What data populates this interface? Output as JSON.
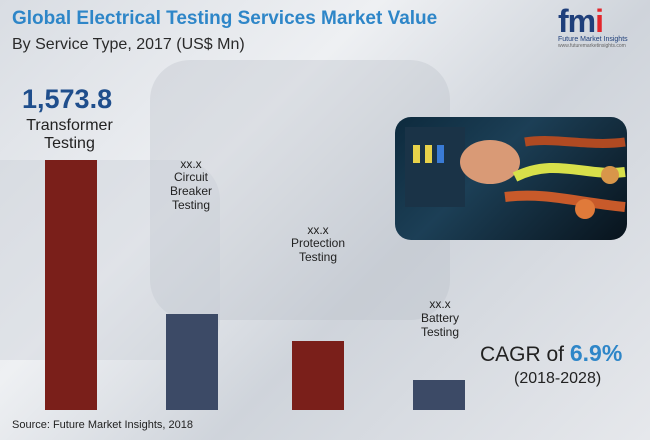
{
  "title": "Global Electrical Testing Services Market Value",
  "subtitle": "By Service Type, 2017 (US$ Mn)",
  "logo": {
    "mark_f": "f",
    "mark_m": "m",
    "mark_i": "i",
    "name": "Future Market Insights",
    "url": "www.futuremarketinsights.com"
  },
  "source": "Source: Future Market Insights, 2018",
  "cagr": {
    "prefix": "CAGR of",
    "value": "6.9%",
    "period": "(2018-2028)"
  },
  "colors": {
    "maroon": "#7a1f1a",
    "navy": "#3c4a66",
    "title_blue": "#2e86c8"
  },
  "chart_data": {
    "type": "bar",
    "title": "Global Electrical Testing Services Market Value",
    "subtitle": "By Service Type, 2017 (US$ Mn)",
    "categories": [
      "Transformer Testing",
      "Circuit Breaker Testing",
      "Protection Testing",
      "Battery Testing"
    ],
    "value_labels": [
      "1,573.8",
      "xx.x",
      "xx.x",
      "xx.x"
    ],
    "values": [
      1573.8,
      602,
      436,
      192
    ],
    "ylim": [
      0,
      1573.8
    ],
    "grid": false,
    "axes_shown": false
  }
}
